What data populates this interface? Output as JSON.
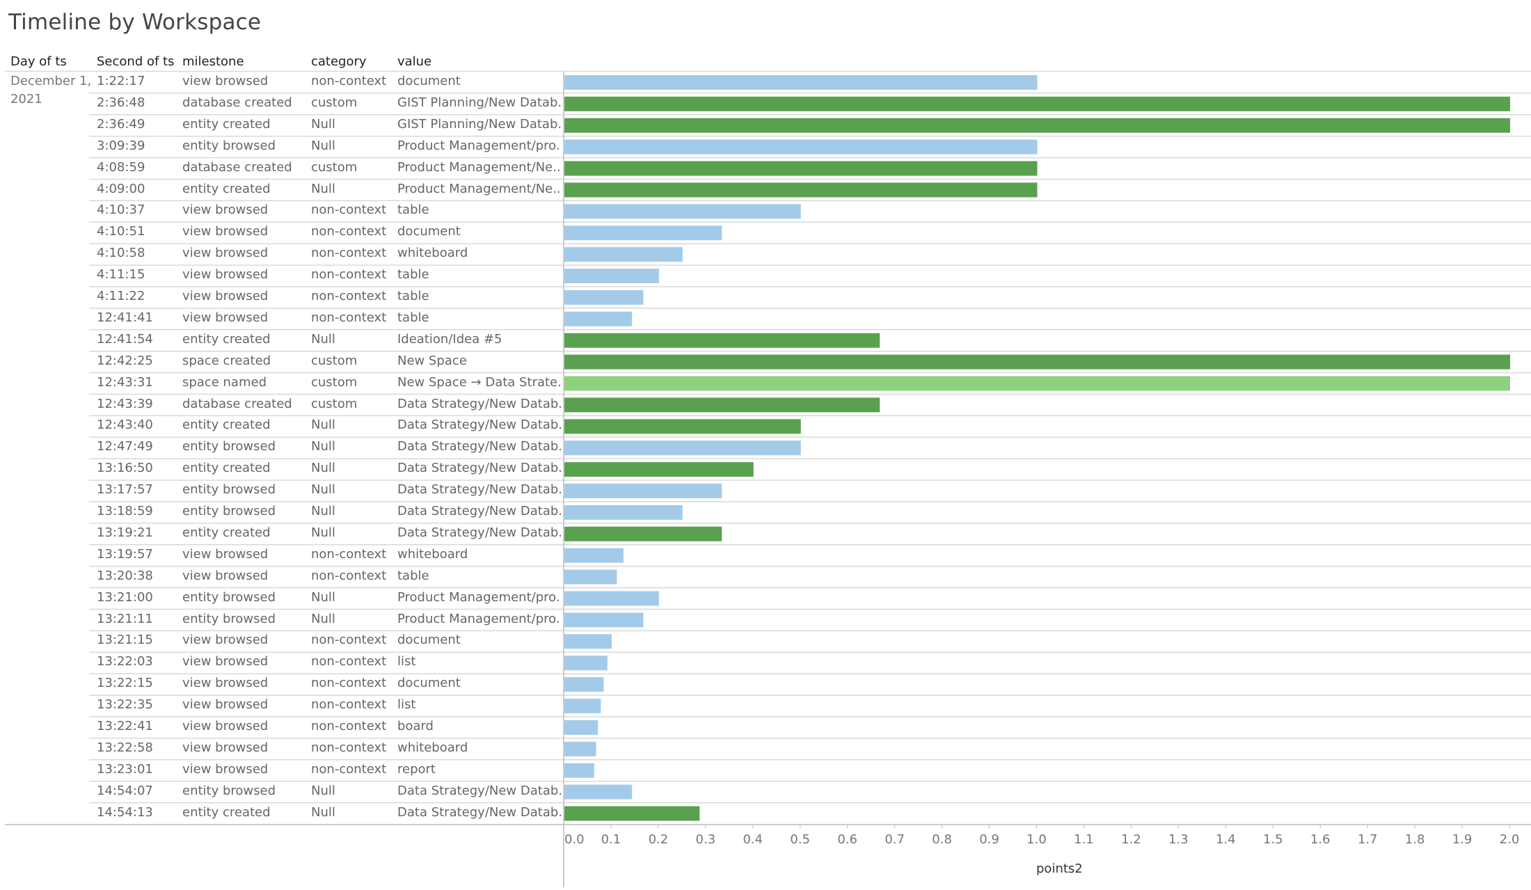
{
  "title": "Timeline by Workspace",
  "headers": {
    "day": "Day of ts",
    "second": "Second of ts",
    "milestone": "milestone",
    "category": "category",
    "value": "value"
  },
  "day_label": "December 1, 2021",
  "colors": {
    "non_context": "#a3cbe9",
    "context": "#59a14f",
    "named": "#8cd17d",
    "grid": "#d9d9d9",
    "axis": "#bbbbbb"
  },
  "chart_data": {
    "type": "bar",
    "orientation": "horizontal",
    "title": "Timeline by Workspace",
    "xlabel": "points2",
    "xlim": [
      0,
      2.0
    ],
    "xticks": [
      "0.0",
      "0.1",
      "0.2",
      "0.3",
      "0.4",
      "0.5",
      "0.6",
      "0.7",
      "0.8",
      "0.9",
      "1.0",
      "1.1",
      "1.2",
      "1.3",
      "1.4",
      "1.5",
      "1.6",
      "1.7",
      "1.8",
      "1.9",
      "2.0"
    ],
    "rows": [
      {
        "time": "1:22:17",
        "milestone": "view browsed",
        "category": "non-context",
        "value": "document",
        "points": 1.0,
        "color": "non_context"
      },
      {
        "time": "2:36:48",
        "milestone": "database created",
        "category": "custom",
        "value": "GIST Planning/New Datab..",
        "points": 2.0,
        "color": "context"
      },
      {
        "time": "2:36:49",
        "milestone": "entity created",
        "category": "Null",
        "value": "GIST Planning/New Datab..",
        "points": 2.0,
        "color": "context"
      },
      {
        "time": "3:09:39",
        "milestone": "entity browsed",
        "category": "Null",
        "value": "Product Management/pro..",
        "points": 1.0,
        "color": "non_context"
      },
      {
        "time": "4:08:59",
        "milestone": "database created",
        "category": "custom",
        "value": "Product Management/Ne..",
        "points": 1.0,
        "color": "context"
      },
      {
        "time": "4:09:00",
        "milestone": "entity created",
        "category": "Null",
        "value": "Product Management/Ne..",
        "points": 1.0,
        "color": "context"
      },
      {
        "time": "4:10:37",
        "milestone": "view browsed",
        "category": "non-context",
        "value": "table",
        "points": 0.5,
        "color": "non_context"
      },
      {
        "time": "4:10:51",
        "milestone": "view browsed",
        "category": "non-context",
        "value": "document",
        "points": 0.333,
        "color": "non_context"
      },
      {
        "time": "4:10:58",
        "milestone": "view browsed",
        "category": "non-context",
        "value": "whiteboard",
        "points": 0.25,
        "color": "non_context"
      },
      {
        "time": "4:11:15",
        "milestone": "view browsed",
        "category": "non-context",
        "value": "table",
        "points": 0.2,
        "color": "non_context"
      },
      {
        "time": "4:11:22",
        "milestone": "view browsed",
        "category": "non-context",
        "value": "table",
        "points": 0.167,
        "color": "non_context"
      },
      {
        "time": "12:41:41",
        "milestone": "view browsed",
        "category": "non-context",
        "value": "table",
        "points": 0.143,
        "color": "non_context"
      },
      {
        "time": "12:41:54",
        "milestone": "entity created",
        "category": "Null",
        "value": "Ideation/Idea #5",
        "points": 0.667,
        "color": "context"
      },
      {
        "time": "12:42:25",
        "milestone": "space created",
        "category": "custom",
        "value": "New Space",
        "points": 2.0,
        "color": "context"
      },
      {
        "time": "12:43:31",
        "milestone": "space named",
        "category": "custom",
        "value": "New Space → Data Strate..",
        "points": 2.0,
        "color": "named"
      },
      {
        "time": "12:43:39",
        "milestone": "database created",
        "category": "custom",
        "value": "Data Strategy/New Datab..",
        "points": 0.667,
        "color": "context"
      },
      {
        "time": "12:43:40",
        "milestone": "entity created",
        "category": "Null",
        "value": "Data Strategy/New Datab..",
        "points": 0.5,
        "color": "context"
      },
      {
        "time": "12:47:49",
        "milestone": "entity browsed",
        "category": "Null",
        "value": "Data Strategy/New Datab..",
        "points": 0.5,
        "color": "non_context"
      },
      {
        "time": "13:16:50",
        "milestone": "entity created",
        "category": "Null",
        "value": "Data Strategy/New Datab..",
        "points": 0.4,
        "color": "context"
      },
      {
        "time": "13:17:57",
        "milestone": "entity browsed",
        "category": "Null",
        "value": "Data Strategy/New Datab..",
        "points": 0.333,
        "color": "non_context"
      },
      {
        "time": "13:18:59",
        "milestone": "entity browsed",
        "category": "Null",
        "value": "Data Strategy/New Datab..",
        "points": 0.25,
        "color": "non_context"
      },
      {
        "time": "13:19:21",
        "milestone": "entity created",
        "category": "Null",
        "value": "Data Strategy/New Datab..",
        "points": 0.333,
        "color": "context"
      },
      {
        "time": "13:19:57",
        "milestone": "view browsed",
        "category": "non-context",
        "value": "whiteboard",
        "points": 0.125,
        "color": "non_context"
      },
      {
        "time": "13:20:38",
        "milestone": "view browsed",
        "category": "non-context",
        "value": "table",
        "points": 0.111,
        "color": "non_context"
      },
      {
        "time": "13:21:00",
        "milestone": "entity browsed",
        "category": "Null",
        "value": "Product Management/pro..",
        "points": 0.2,
        "color": "non_context"
      },
      {
        "time": "13:21:11",
        "milestone": "entity browsed",
        "category": "Null",
        "value": "Product Management/pro..",
        "points": 0.167,
        "color": "non_context"
      },
      {
        "time": "13:21:15",
        "milestone": "view browsed",
        "category": "non-context",
        "value": "document",
        "points": 0.1,
        "color": "non_context"
      },
      {
        "time": "13:22:03",
        "milestone": "view browsed",
        "category": "non-context",
        "value": "list",
        "points": 0.091,
        "color": "non_context"
      },
      {
        "time": "13:22:15",
        "milestone": "view browsed",
        "category": "non-context",
        "value": "document",
        "points": 0.083,
        "color": "non_context"
      },
      {
        "time": "13:22:35",
        "milestone": "view browsed",
        "category": "non-context",
        "value": "list",
        "points": 0.077,
        "color": "non_context"
      },
      {
        "time": "13:22:41",
        "milestone": "view browsed",
        "category": "non-context",
        "value": "board",
        "points": 0.071,
        "color": "non_context"
      },
      {
        "time": "13:22:58",
        "milestone": "view browsed",
        "category": "non-context",
        "value": "whiteboard",
        "points": 0.067,
        "color": "non_context"
      },
      {
        "time": "13:23:01",
        "milestone": "view browsed",
        "category": "non-context",
        "value": "report",
        "points": 0.063,
        "color": "non_context"
      },
      {
        "time": "14:54:07",
        "milestone": "entity browsed",
        "category": "Null",
        "value": "Data Strategy/New Datab..",
        "points": 0.143,
        "color": "non_context"
      },
      {
        "time": "14:54:13",
        "milestone": "entity created",
        "category": "Null",
        "value": "Data Strategy/New Datab..",
        "points": 0.286,
        "color": "context"
      }
    ]
  }
}
